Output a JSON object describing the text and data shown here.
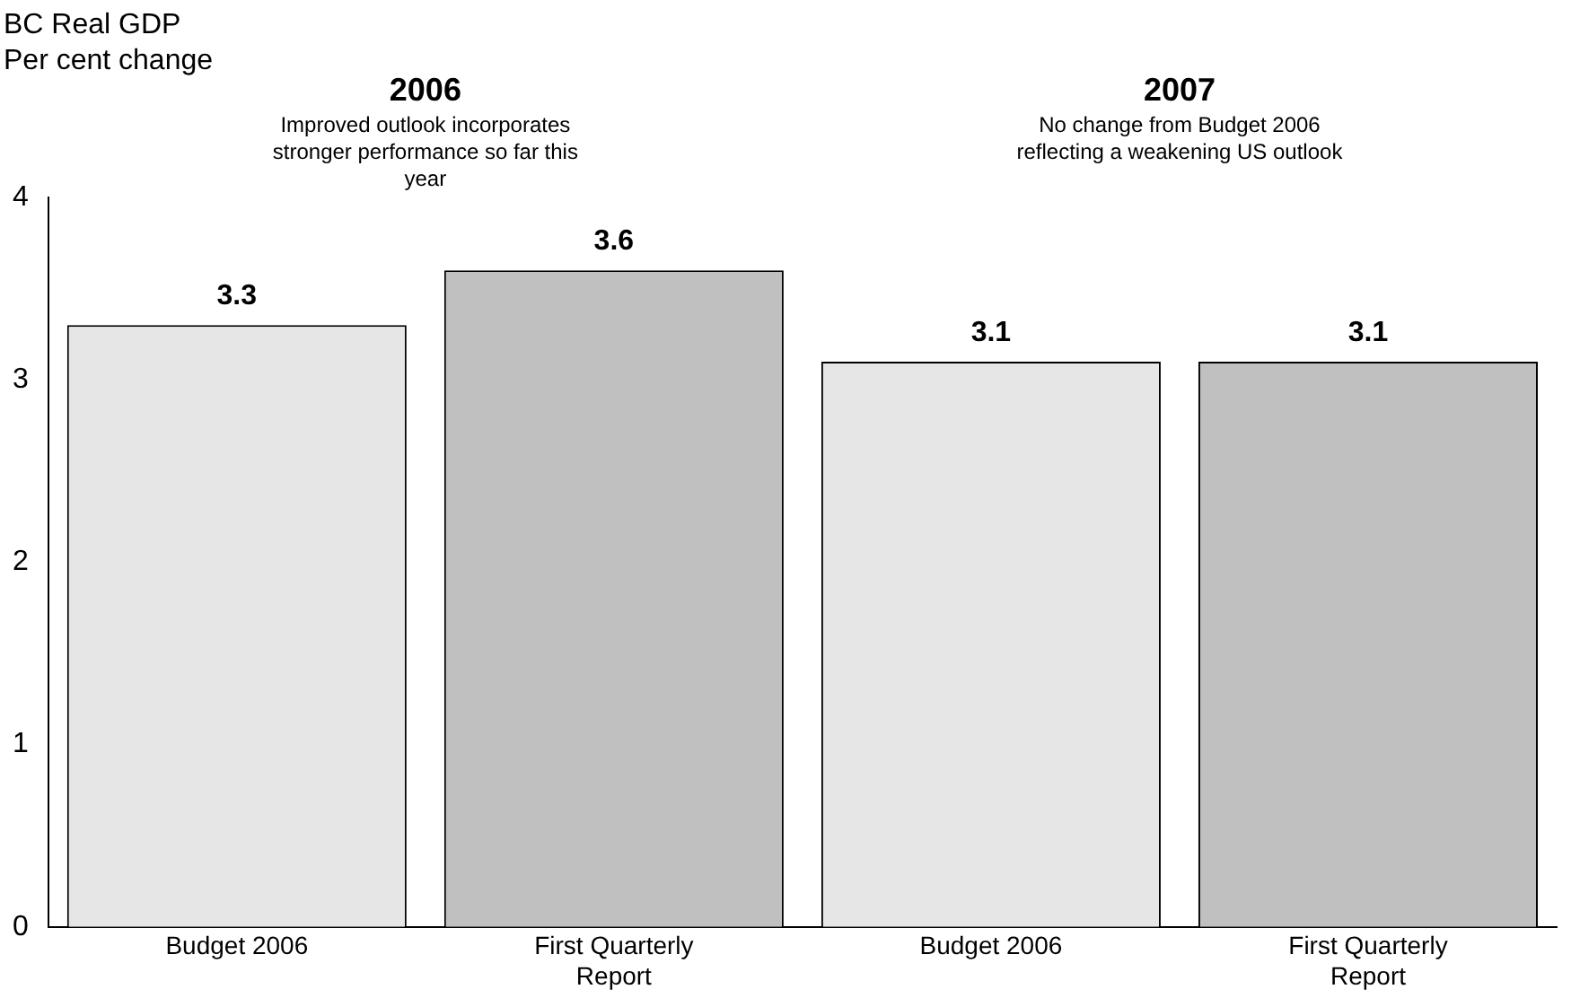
{
  "chart_data": {
    "type": "bar",
    "title": "BC Real GDP",
    "ylabel": "Per cent change",
    "categories": [
      "Budget 2006",
      "First Quarterly Report",
      "Budget 2006",
      "First Quarterly Report"
    ],
    "values": [
      3.3,
      3.6,
      3.1,
      3.1
    ],
    "colors": [
      "#e6e6e6",
      "#c0c0c0",
      "#e6e6e6",
      "#c0c0c0"
    ],
    "annotations": [
      "2006",
      "Improved outlook incorporates stronger performance so far this year",
      "2007",
      "No change from Budget 2006 reflecting a weakening US outlook"
    ],
    "ylim": [
      0,
      4
    ],
    "yticks": [
      0,
      1,
      2,
      3,
      4
    ],
    "grid": false,
    "legend": false,
    "data_labels": true
  }
}
